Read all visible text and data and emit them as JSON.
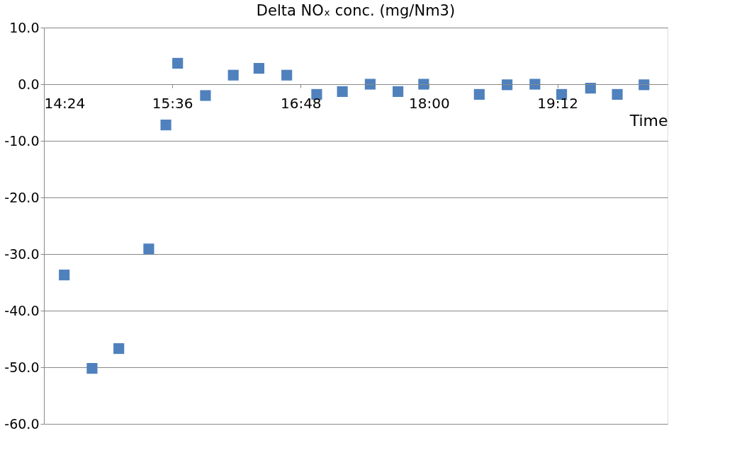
{
  "chart_data": {
    "type": "scatter",
    "title": "Delta NOₓ conc. (mg/Nm3)",
    "xlabel": "Time",
    "x": [
      14.59,
      14.85,
      15.1,
      15.38,
      15.54,
      15.65,
      15.91,
      16.17,
      16.41,
      16.67,
      16.95,
      17.19,
      17.45,
      17.71,
      17.95,
      18.47,
      18.73,
      18.99,
      19.24,
      19.51,
      19.76,
      20.01
    ],
    "series": [
      {
        "color": "#4f81bd",
        "values": [
          -33.7,
          -50.2,
          -46.7,
          -29.1,
          -7.2,
          3.7,
          -2.0,
          1.6,
          2.8,
          1.6,
          -1.8,
          -1.3,
          0.0,
          -1.3,
          0.0,
          -1.8,
          -0.1,
          0.0,
          -1.8,
          -0.7,
          -1.8,
          -0.1
        ]
      }
    ],
    "xlim": [
      14.4,
      20.23
    ],
    "xticks": [
      {
        "value": 14.4,
        "label": "14:24"
      },
      {
        "value": 15.6,
        "label": "15:36"
      },
      {
        "value": 16.8,
        "label": "16:48"
      },
      {
        "value": 18.0,
        "label": "18:00"
      },
      {
        "value": 19.2,
        "label": "19:12"
      }
    ],
    "ylim": [
      -60,
      10
    ],
    "yticks": [
      {
        "value": 10,
        "label": "10.0"
      },
      {
        "value": 0,
        "label": "0.0"
      },
      {
        "value": -10,
        "label": "-10.0"
      },
      {
        "value": -20,
        "label": "-20.0"
      },
      {
        "value": -30,
        "label": "-30.0"
      },
      {
        "value": -40,
        "label": "-40.0"
      },
      {
        "value": -50,
        "label": "-50.0"
      },
      {
        "value": -60,
        "label": "-60.0"
      }
    ],
    "grid": "y",
    "marker": "square"
  }
}
